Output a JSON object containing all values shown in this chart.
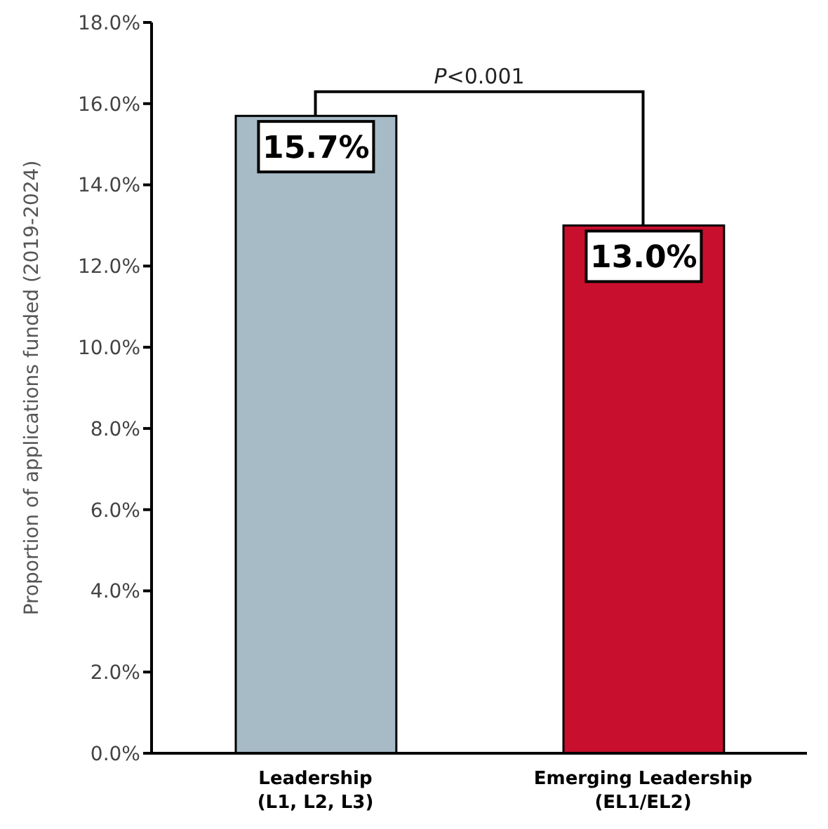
{
  "chart_data": {
    "type": "bar",
    "ylabel": "Proportion of applications funded (2019-2024)",
    "categories": [
      "Leadership\n(L1, L2, L3)",
      "Emerging Leadership\n(EL1/EL2)"
    ],
    "values": [
      15.7,
      13.0
    ],
    "colors": [
      "#a7bbc7",
      "#c8102e"
    ],
    "value_labels": [
      "15.7%",
      "13.0%"
    ],
    "ylim": [
      0,
      18
    ],
    "yticks": [
      {
        "value": 0,
        "label": "0.0%"
      },
      {
        "value": 2,
        "label": "2.0%"
      },
      {
        "value": 4,
        "label": "4.0%"
      },
      {
        "value": 6,
        "label": "6.0%"
      },
      {
        "value": 8,
        "label": "8.0%"
      },
      {
        "value": 10,
        "label": "10.0%"
      },
      {
        "value": 12,
        "label": "12.0%"
      },
      {
        "value": 14,
        "label": "14.0%"
      },
      {
        "value": 16,
        "label": "16.0%"
      },
      {
        "value": 18,
        "label": "18.0%"
      }
    ],
    "annotations": [
      "P<0.001"
    ],
    "grid": false,
    "legend": false
  }
}
